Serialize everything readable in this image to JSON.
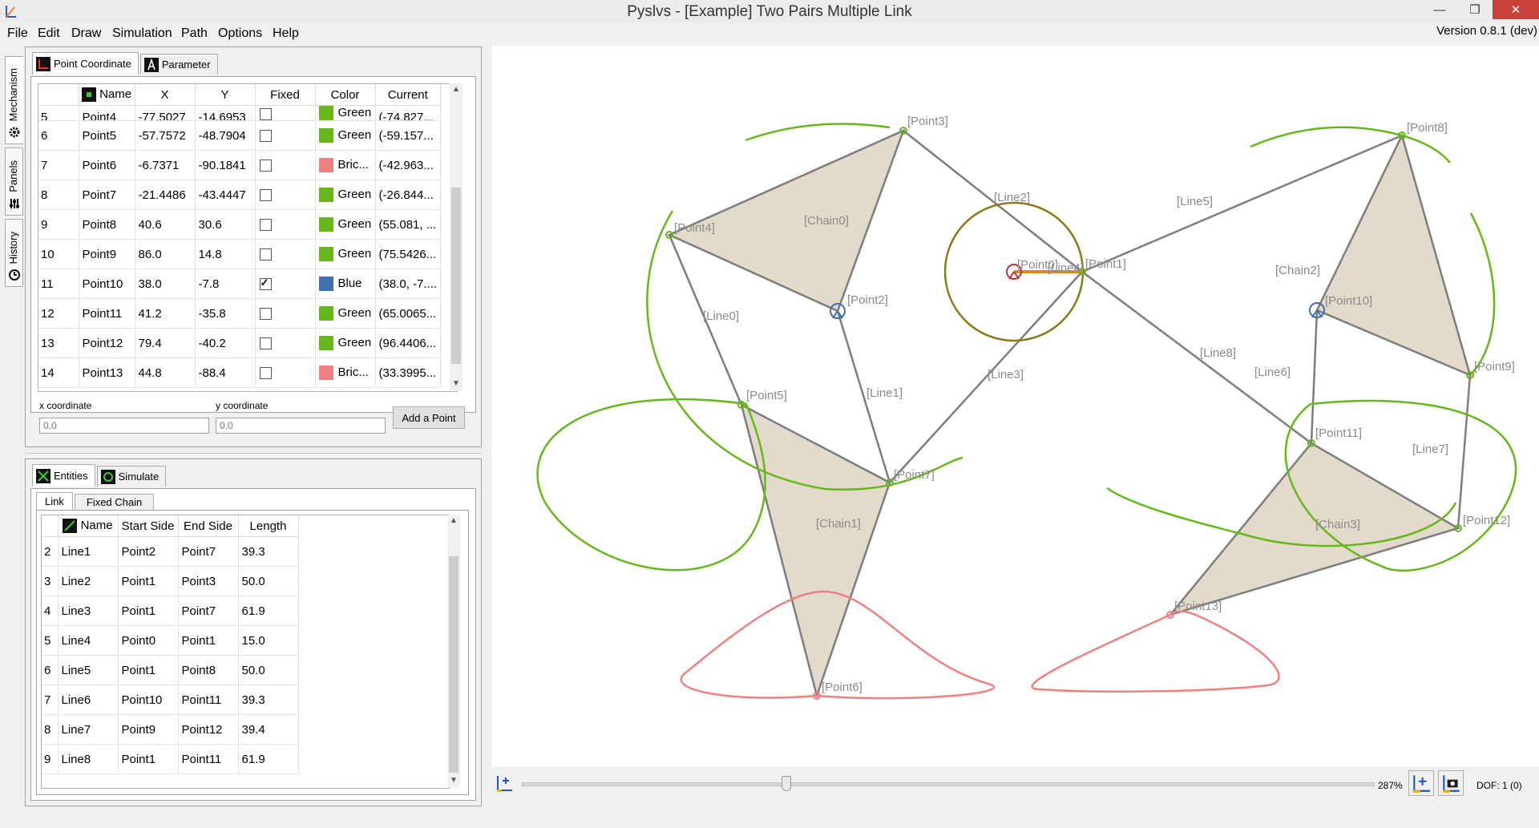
{
  "window": {
    "title": "Pyslvs - [Example] Two Pairs Multiple Link",
    "version": "Version 0.8.1 (dev)"
  },
  "menu": [
    "File",
    "Edit",
    "Draw",
    "Simulation",
    "Path",
    "Options",
    "Help"
  ],
  "side_tabs": [
    "Mechanism",
    "Panels",
    "History"
  ],
  "top_tabs": [
    "Point Coordinate",
    "Parameter"
  ],
  "points_table": {
    "headers": [
      "Name",
      "X",
      "Y",
      "Fixed",
      "Color",
      "Current"
    ],
    "rows": [
      {
        "n": "5",
        "name": "Point4",
        "x": "-77.5027",
        "y": "-14.6953",
        "fixed": false,
        "color": "Green",
        "swatch": "#66b81a",
        "current": "(-74.827..."
      },
      {
        "n": "6",
        "name": "Point5",
        "x": "-57.7572",
        "y": "-48.7904",
        "fixed": false,
        "color": "Green",
        "swatch": "#66b81a",
        "current": "(-59.157..."
      },
      {
        "n": "7",
        "name": "Point6",
        "x": "-6.7371",
        "y": "-90.1841",
        "fixed": false,
        "color": "Bric...",
        "swatch": "#f08080",
        "current": "(-42.963..."
      },
      {
        "n": "8",
        "name": "Point7",
        "x": "-21.4486",
        "y": "-43.4447",
        "fixed": false,
        "color": "Green",
        "swatch": "#66b81a",
        "current": "(-26.844..."
      },
      {
        "n": "9",
        "name": "Point8",
        "x": "40.6",
        "y": "30.6",
        "fixed": false,
        "color": "Green",
        "swatch": "#66b81a",
        "current": "(55.081, ..."
      },
      {
        "n": "10",
        "name": "Point9",
        "x": "86.0",
        "y": "14.8",
        "fixed": false,
        "color": "Green",
        "swatch": "#66b81a",
        "current": "(75.5426..."
      },
      {
        "n": "11",
        "name": "Point10",
        "x": "38.0",
        "y": "-7.8",
        "fixed": true,
        "color": "Blue",
        "swatch": "#3f6fb0",
        "current": "(38.0, -7...."
      },
      {
        "n": "12",
        "name": "Point11",
        "x": "41.2",
        "y": "-35.8",
        "fixed": false,
        "color": "Green",
        "swatch": "#66b81a",
        "current": "(65.0065..."
      },
      {
        "n": "13",
        "name": "Point12",
        "x": "79.4",
        "y": "-40.2",
        "fixed": false,
        "color": "Green",
        "swatch": "#66b81a",
        "current": "(96.4406..."
      },
      {
        "n": "14",
        "name": "Point13",
        "x": "44.8",
        "y": "-88.4",
        "fixed": false,
        "color": "Bric...",
        "swatch": "#f08080",
        "current": "(33.3995..."
      }
    ]
  },
  "coord_inputs": {
    "x_label": "x coordinate",
    "y_label": "y coordinate",
    "x_placeholder": "0.0",
    "y_placeholder": "0.0",
    "add_button": "Add a Point"
  },
  "bottom_tabs": [
    "Entities",
    "Simulate"
  ],
  "sub_tabs": [
    "Link",
    "Fixed Chain"
  ],
  "links_table": {
    "headers": [
      "Name",
      "Start Side",
      "End Side",
      "Length"
    ],
    "rows": [
      {
        "n": "2",
        "name": "Line1",
        "start": "Point2",
        "end": "Point7",
        "len": "39.3"
      },
      {
        "n": "3",
        "name": "Line2",
        "start": "Point1",
        "end": "Point3",
        "len": "50.0"
      },
      {
        "n": "4",
        "name": "Line3",
        "start": "Point1",
        "end": "Point7",
        "len": "61.9"
      },
      {
        "n": "5",
        "name": "Line4",
        "start": "Point0",
        "end": "Point1",
        "len": "15.0"
      },
      {
        "n": "6",
        "name": "Line5",
        "start": "Point1",
        "end": "Point8",
        "len": "50.0"
      },
      {
        "n": "7",
        "name": "Line6",
        "start": "Point10",
        "end": "Point11",
        "len": "39.3"
      },
      {
        "n": "8",
        "name": "Line7",
        "start": "Point9",
        "end": "Point12",
        "len": "39.4"
      },
      {
        "n": "9",
        "name": "Line8",
        "start": "Point1",
        "end": "Point11",
        "len": "61.9"
      }
    ]
  },
  "canvas": {
    "point_labels": [
      "[Point0]",
      "[Point1]",
      "[Point2]",
      "[Point3]",
      "[Point4]",
      "[Point5]",
      "[Point6]",
      "[Point7]",
      "[Point8]",
      "[Point9]",
      "[Point10]",
      "[Point11]",
      "[Point12]",
      "[Point13]"
    ],
    "line_labels": [
      "[Line0]",
      "[Line1]",
      "[Line2]",
      "[Line3]",
      "[Line4]",
      "[Line5]",
      "[Line6]",
      "[Line7]",
      "[Line8]"
    ],
    "chain_labels": [
      "[Chain0]",
      "[Chain1]",
      "[Chain2]",
      "[Chain3]"
    ]
  },
  "status": {
    "zoom": "287%",
    "dof": "DOF: 1 (0)",
    "slider_fraction": 0.31
  }
}
